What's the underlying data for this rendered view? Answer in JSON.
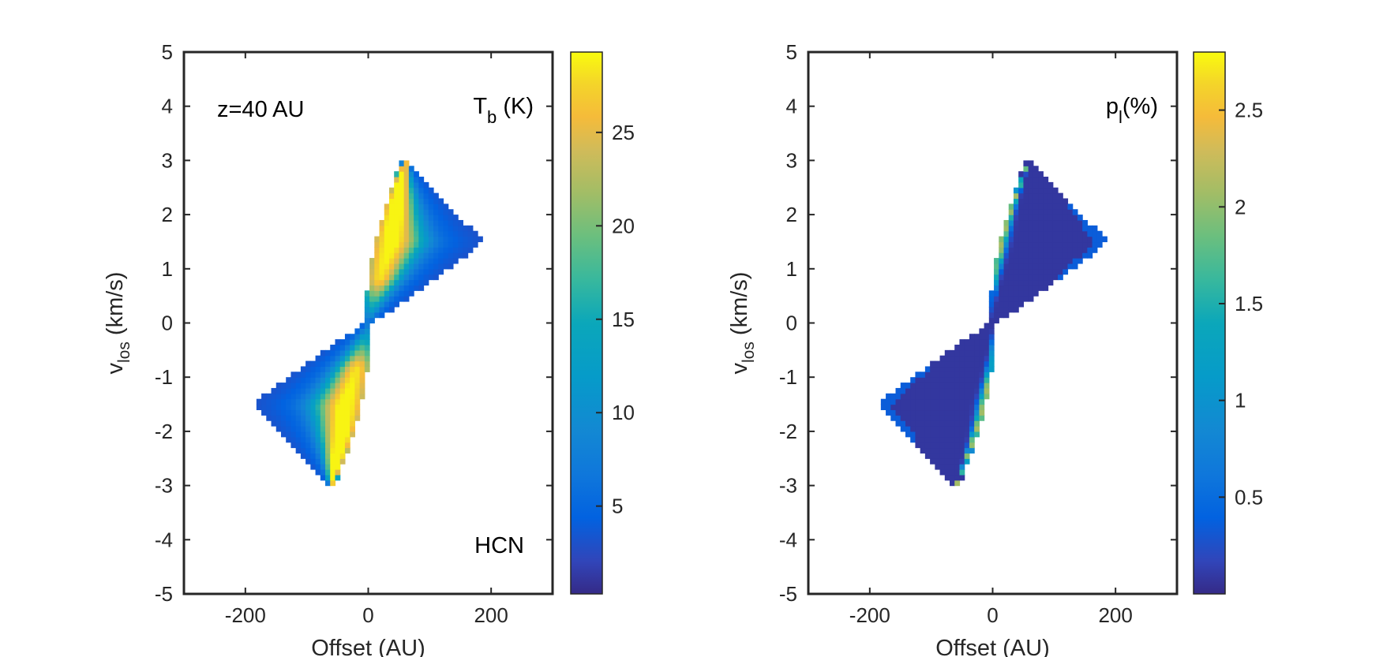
{
  "chart_data": [
    {
      "type": "heatmap",
      "title": "",
      "xlabel": "Offset (AU)",
      "ylabel": {
        "main": "v",
        "sub": "los",
        "unit": " (km/s)"
      },
      "xlim": [
        -300,
        300
      ],
      "ylim": [
        -5,
        5
      ],
      "xticks": [
        -200,
        0,
        200
      ],
      "xtick_labels": [
        "-200",
        "0",
        "200"
      ],
      "yticks": [
        5,
        4,
        3,
        2,
        1,
        0,
        -1,
        -2,
        -3,
        -4,
        -5
      ],
      "ytick_labels": [
        "5",
        "4",
        "3",
        "2",
        "1",
        "0",
        "-1",
        "-2",
        "-3",
        "-4",
        "-5"
      ],
      "annotations": {
        "top_left": "z=40 AU",
        "bottom_right": "HCN",
        "quantity_main": "T",
        "quantity_sub": "b",
        "quantity_unit": " (K)"
      },
      "colorbar": {
        "colormap": "parula",
        "range": [
          0.3,
          29.3
        ],
        "ticks": [
          5,
          10,
          15,
          20,
          25
        ],
        "tick_labels": [
          "5",
          "10",
          "15",
          "20",
          "25"
        ]
      },
      "emission_region": {
        "description_values": "butterfly-shaped position-velocity region spanning offset -185 to 185 AU and velocity -3 to 3 km/s",
        "peak_points": [
          [
            60,
            3
          ],
          [
            185,
            1.5
          ],
          [
            -60,
            -3
          ],
          [
            -185,
            -1.5
          ]
        ],
        "max_value": 29,
        "ridge": "bright ridge along inner edge of each lobe"
      }
    },
    {
      "type": "heatmap",
      "title": "",
      "xlabel": "Offset (AU)",
      "ylabel": {
        "main": "v",
        "sub": "los",
        "unit": " (km/s)"
      },
      "xlim": [
        -300,
        300
      ],
      "ylim": [
        -5,
        5
      ],
      "xticks": [
        -200,
        0,
        200
      ],
      "xtick_labels": [
        "-200",
        "0",
        "200"
      ],
      "yticks": [
        5,
        4,
        3,
        2,
        1,
        0,
        -1,
        -2,
        -3,
        -4,
        -5
      ],
      "ytick_labels": [
        "5",
        "4",
        "3",
        "2",
        "1",
        "0",
        "-1",
        "-2",
        "-3",
        "-4",
        "-5"
      ],
      "annotations": {
        "quantity_main": "p",
        "quantity_sub": "l",
        "quantity_unit": "(%)"
      },
      "colorbar": {
        "colormap": "parula",
        "range": [
          0.0,
          2.8
        ],
        "ticks": [
          0.5,
          1,
          1.5,
          2,
          2.5
        ],
        "tick_labels": [
          "0.5",
          "1",
          "1.5",
          "2",
          "2.5"
        ]
      },
      "emission_region": {
        "description_values": "same region; polarization fraction mostly near 0, rising to about 2% at the inner edge",
        "max_value": 2.1
      }
    }
  ]
}
